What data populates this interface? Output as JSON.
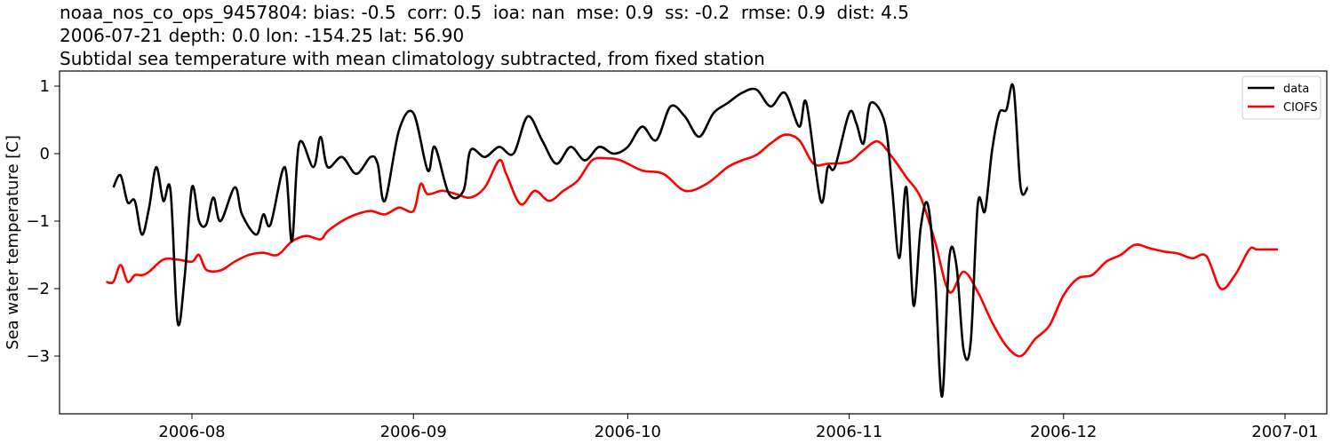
{
  "title": {
    "line1": "noaa_nos_co_ops_9457804: bias: -0.5  corr: 0.5  ioa: nan  mse: 0.9  ss: -0.2  rmse: 0.9  dist: 4.5",
    "line2": "2006-07-21 depth: 0.0 lon: -154.25 lat: 56.90",
    "line3": "Subtidal sea temperature with mean climatology subtracted, from fixed station"
  },
  "axes": {
    "ylabel": "Sea water temperature [C]",
    "xticks": [
      "2006-08",
      "2006-09",
      "2006-10",
      "2006-11",
      "2006-12",
      "2007-01"
    ],
    "yticks": [
      "1",
      "0",
      "−1",
      "−2",
      "−3"
    ]
  },
  "legend": {
    "items": [
      {
        "label": "data",
        "color": "#000000"
      },
      {
        "label": "CIOFS",
        "color": "#ff0000"
      }
    ]
  },
  "chart_data": {
    "type": "line",
    "title": "noaa_nos_co_ops_9457804: bias: -0.5  corr: 0.5  ioa: nan  mse: 0.9  ss: -0.2  rmse: 0.9  dist: 4.5 / 2006-07-21 depth: 0.0 lon: -154.25 lat: 56.90 / Subtidal sea temperature with mean climatology subtracted, from fixed station",
    "xlabel": "",
    "ylabel": "Sea water temperature [C]",
    "xlim": [
      "2006-07-14",
      "2007-01-02"
    ],
    "ylim": [
      -3.9,
      1.22
    ],
    "x_ticks": [
      "2006-08",
      "2006-09",
      "2006-10",
      "2006-11",
      "2006-12",
      "2007-01"
    ],
    "y_ticks": [
      1,
      0,
      -1,
      -2,
      -3
    ],
    "legend_position": "upper right",
    "grid": false,
    "series": [
      {
        "name": "data",
        "color": "#000000",
        "x": [
          "2006-07-21",
          "2006-07-22",
          "2006-07-23",
          "2006-07-24",
          "2006-07-25",
          "2006-07-26",
          "2006-07-27",
          "2006-07-28",
          "2006-07-29",
          "2006-07-30",
          "2006-07-31",
          "2006-08-01",
          "2006-08-02",
          "2006-08-03",
          "2006-08-04",
          "2006-08-05",
          "2006-08-07",
          "2006-08-08",
          "2006-08-10",
          "2006-08-11",
          "2006-08-12",
          "2006-08-14",
          "2006-08-15",
          "2006-08-16",
          "2006-08-18",
          "2006-08-19",
          "2006-08-20",
          "2006-08-22",
          "2006-08-24",
          "2006-08-26",
          "2006-08-27",
          "2006-08-28",
          "2006-08-30",
          "2006-09-01",
          "2006-09-03",
          "2006-09-04",
          "2006-09-06",
          "2006-09-08",
          "2006-09-09",
          "2006-09-11",
          "2006-09-13",
          "2006-09-15",
          "2006-09-17",
          "2006-09-19",
          "2006-09-21",
          "2006-09-23",
          "2006-09-25",
          "2006-09-27",
          "2006-09-29",
          "2006-10-01",
          "2006-10-03",
          "2006-10-05",
          "2006-10-07",
          "2006-10-09",
          "2006-10-11",
          "2006-10-13",
          "2006-10-15",
          "2006-10-17",
          "2006-10-19",
          "2006-10-21",
          "2006-10-23",
          "2006-10-25",
          "2006-10-26",
          "2006-10-28",
          "2006-10-29",
          "2006-10-30",
          "2006-11-01",
          "2006-11-02",
          "2006-11-03",
          "2006-11-04",
          "2006-11-06",
          "2006-11-07",
          "2006-11-08",
          "2006-11-09",
          "2006-11-10",
          "2006-11-11",
          "2006-11-12",
          "2006-11-13",
          "2006-11-14",
          "2006-11-15",
          "2006-11-16",
          "2006-11-17",
          "2006-11-18",
          "2006-11-19",
          "2006-11-20",
          "2006-11-21",
          "2006-11-22",
          "2006-11-23",
          "2006-11-24",
          "2006-11-25",
          "2006-11-26"
        ],
        "values": [
          -0.5,
          -0.32,
          -0.72,
          -0.7,
          -1.2,
          -0.8,
          -0.2,
          -0.7,
          -0.55,
          -2.5,
          -1.8,
          -0.5,
          -1.0,
          -1.05,
          -0.65,
          -1.0,
          -0.5,
          -0.9,
          -1.2,
          -0.9,
          -1.05,
          -0.2,
          -1.3,
          0.15,
          -0.2,
          0.25,
          -0.2,
          -0.05,
          -0.3,
          -0.05,
          -0.15,
          -0.7,
          0.35,
          0.6,
          -0.25,
          0.1,
          -0.6,
          -0.55,
          0.05,
          -0.05,
          0.1,
          0.0,
          0.55,
          0.2,
          -0.15,
          0.1,
          -0.1,
          0.1,
          -0.0,
          0.1,
          0.4,
          0.2,
          0.7,
          0.55,
          0.25,
          0.6,
          0.75,
          0.9,
          0.95,
          0.7,
          0.9,
          0.4,
          0.75,
          -0.7,
          -0.2,
          -0.2,
          0.6,
          0.45,
          0.15,
          0.75,
          0.45,
          -0.5,
          -1.55,
          -0.5,
          -2.25,
          -1.1,
          -0.75,
          -1.8,
          -3.6,
          -1.55,
          -1.65,
          -2.9,
          -2.8,
          -0.75,
          -0.85,
          0.05,
          0.6,
          0.65,
          0.98,
          -0.5,
          -0.5
        ]
      },
      {
        "name": "CIOFS",
        "color": "#ff0000",
        "x": [
          "2006-07-20",
          "2006-07-21",
          "2006-07-22",
          "2006-07-23",
          "2006-07-24",
          "2006-07-25",
          "2006-07-26",
          "2006-07-28",
          "2006-07-30",
          "2006-08-01",
          "2006-08-02",
          "2006-08-03",
          "2006-08-05",
          "2006-08-07",
          "2006-08-09",
          "2006-08-11",
          "2006-08-13",
          "2006-08-15",
          "2006-08-17",
          "2006-08-19",
          "2006-08-20",
          "2006-08-22",
          "2006-08-24",
          "2006-08-26",
          "2006-08-28",
          "2006-08-30",
          "2006-09-01",
          "2006-09-02",
          "2006-09-03",
          "2006-09-05",
          "2006-09-07",
          "2006-09-09",
          "2006-09-11",
          "2006-09-13",
          "2006-09-14",
          "2006-09-16",
          "2006-09-18",
          "2006-09-20",
          "2006-09-22",
          "2006-09-24",
          "2006-09-26",
          "2006-09-28",
          "2006-09-30",
          "2006-10-03",
          "2006-10-06",
          "2006-10-09",
          "2006-10-12",
          "2006-10-15",
          "2006-10-17",
          "2006-10-19",
          "2006-10-21",
          "2006-10-23",
          "2006-10-25",
          "2006-10-27",
          "2006-10-29",
          "2006-11-01",
          "2006-11-03",
          "2006-11-05",
          "2006-11-07",
          "2006-11-09",
          "2006-11-11",
          "2006-11-13",
          "2006-11-15",
          "2006-11-17",
          "2006-11-19",
          "2006-11-21",
          "2006-11-23",
          "2006-11-25",
          "2006-11-27",
          "2006-11-29",
          "2006-12-01",
          "2006-12-03",
          "2006-12-05",
          "2006-12-07",
          "2006-12-09",
          "2006-12-11",
          "2006-12-13",
          "2006-12-15",
          "2006-12-17",
          "2006-12-19",
          "2006-12-21",
          "2006-12-23",
          "2006-12-25",
          "2006-12-27",
          "2006-12-28",
          "2006-12-29",
          "2006-12-31"
        ],
        "values": [
          -1.9,
          -1.9,
          -1.65,
          -1.9,
          -1.8,
          -1.8,
          -1.75,
          -1.57,
          -1.57,
          -1.6,
          -1.5,
          -1.72,
          -1.73,
          -1.6,
          -1.5,
          -1.47,
          -1.5,
          -1.3,
          -1.22,
          -1.27,
          -1.15,
          -1.0,
          -0.9,
          -0.85,
          -0.9,
          -0.8,
          -0.85,
          -0.45,
          -0.6,
          -0.55,
          -0.6,
          -0.65,
          -0.5,
          -0.1,
          -0.3,
          -0.75,
          -0.55,
          -0.7,
          -0.55,
          -0.4,
          -0.1,
          -0.07,
          -0.1,
          -0.25,
          -0.3,
          -0.55,
          -0.45,
          -0.2,
          -0.1,
          -0.02,
          0.15,
          0.28,
          0.2,
          -0.15,
          -0.15,
          -0.12,
          0.05,
          0.18,
          -0.05,
          -0.35,
          -0.65,
          -1.3,
          -2.05,
          -1.75,
          -2.05,
          -2.5,
          -2.85,
          -3.0,
          -2.75,
          -2.55,
          -2.1,
          -1.85,
          -1.8,
          -1.6,
          -1.5,
          -1.35,
          -1.4,
          -1.45,
          -1.48,
          -1.55,
          -1.52,
          -2.0,
          -1.8,
          -1.42,
          -1.42,
          -1.42,
          -1.42
        ]
      }
    ]
  }
}
